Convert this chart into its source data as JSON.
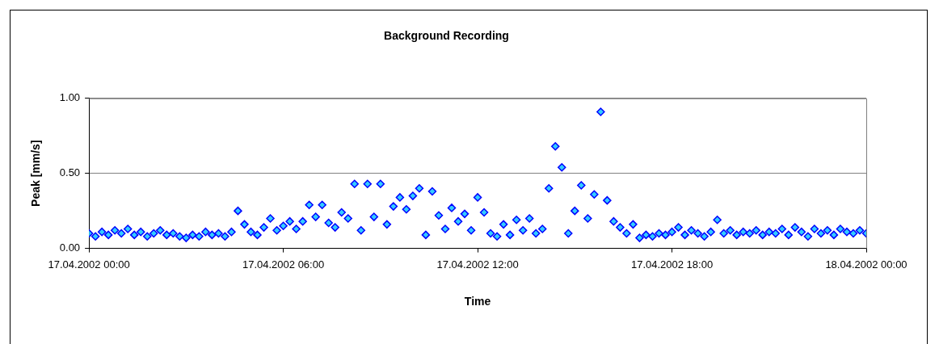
{
  "chart_data": {
    "type": "scatter",
    "title": "Background Recording",
    "xlabel": "Time",
    "ylabel": "Peak [mm/s]",
    "xlim": [
      "2002-04-17T00:00",
      "2002-04-18T00:00"
    ],
    "xticks": [
      {
        "value": "2002-04-17T00:00",
        "label": "17.04.2002 00:00"
      },
      {
        "value": "2002-04-17T06:00",
        "label": "17.04.2002 06:00"
      },
      {
        "value": "2002-04-17T12:00",
        "label": "17.04.2002 12:00"
      },
      {
        "value": "2002-04-17T18:00",
        "label": "17.04.2002 18:00"
      },
      {
        "value": "2002-04-18T00:00",
        "label": "18.04.2002 00:00"
      }
    ],
    "ylim": [
      0,
      1
    ],
    "yticks": [
      {
        "value": 0,
        "label": "0.00"
      },
      {
        "value": 0.5,
        "label": "0.50"
      },
      {
        "value": 1,
        "label": "1.00"
      }
    ],
    "grid": "y",
    "legend": false,
    "marker": "diamond",
    "series": [
      {
        "color": "#33ccff",
        "x": [
          "2002-04-17T00:00",
          "2002-04-17T00:12",
          "2002-04-17T00:24",
          "2002-04-17T00:36",
          "2002-04-17T00:48",
          "2002-04-17T01:00",
          "2002-04-17T01:12",
          "2002-04-17T01:24",
          "2002-04-17T01:36",
          "2002-04-17T01:48",
          "2002-04-17T02:00",
          "2002-04-17T02:12",
          "2002-04-17T02:24",
          "2002-04-17T02:36",
          "2002-04-17T02:48",
          "2002-04-17T03:00",
          "2002-04-17T03:12",
          "2002-04-17T03:24",
          "2002-04-17T03:36",
          "2002-04-17T03:48",
          "2002-04-17T04:00",
          "2002-04-17T04:12",
          "2002-04-17T04:24",
          "2002-04-17T04:36",
          "2002-04-17T04:48",
          "2002-04-17T05:00",
          "2002-04-17T05:12",
          "2002-04-17T05:24",
          "2002-04-17T05:36",
          "2002-04-17T05:48",
          "2002-04-17T06:00",
          "2002-04-17T06:12",
          "2002-04-17T06:24",
          "2002-04-17T06:36",
          "2002-04-17T06:48",
          "2002-04-17T07:00",
          "2002-04-17T07:12",
          "2002-04-17T07:24",
          "2002-04-17T07:36",
          "2002-04-17T07:48",
          "2002-04-17T08:00",
          "2002-04-17T08:12",
          "2002-04-17T08:24",
          "2002-04-17T08:36",
          "2002-04-17T08:48",
          "2002-04-17T09:00",
          "2002-04-17T09:12",
          "2002-04-17T09:24",
          "2002-04-17T09:36",
          "2002-04-17T09:48",
          "2002-04-17T10:00",
          "2002-04-17T10:12",
          "2002-04-17T10:24",
          "2002-04-17T10:36",
          "2002-04-17T10:48",
          "2002-04-17T11:00",
          "2002-04-17T11:12",
          "2002-04-17T11:24",
          "2002-04-17T11:36",
          "2002-04-17T11:48",
          "2002-04-17T12:00",
          "2002-04-17T12:12",
          "2002-04-17T12:24",
          "2002-04-17T12:36",
          "2002-04-17T12:48",
          "2002-04-17T13:00",
          "2002-04-17T13:12",
          "2002-04-17T13:24",
          "2002-04-17T13:36",
          "2002-04-17T13:48",
          "2002-04-17T14:00",
          "2002-04-17T14:12",
          "2002-04-17T14:24",
          "2002-04-17T14:36",
          "2002-04-17T14:48",
          "2002-04-17T15:00",
          "2002-04-17T15:12",
          "2002-04-17T15:24",
          "2002-04-17T15:36",
          "2002-04-17T15:48",
          "2002-04-17T16:00",
          "2002-04-17T16:12",
          "2002-04-17T16:24",
          "2002-04-17T16:36",
          "2002-04-17T16:48",
          "2002-04-17T17:00",
          "2002-04-17T17:12",
          "2002-04-17T17:24",
          "2002-04-17T17:36",
          "2002-04-17T17:48",
          "2002-04-17T18:00",
          "2002-04-17T18:12",
          "2002-04-17T18:24",
          "2002-04-17T18:36",
          "2002-04-17T18:48",
          "2002-04-17T19:00",
          "2002-04-17T19:12",
          "2002-04-17T19:24",
          "2002-04-17T19:36",
          "2002-04-17T19:48",
          "2002-04-17T20:00",
          "2002-04-17T20:12",
          "2002-04-17T20:24",
          "2002-04-17T20:36",
          "2002-04-17T20:48",
          "2002-04-17T21:00",
          "2002-04-17T21:12",
          "2002-04-17T21:24",
          "2002-04-17T21:36",
          "2002-04-17T21:48",
          "2002-04-17T22:00",
          "2002-04-17T22:12",
          "2002-04-17T22:24",
          "2002-04-17T22:36",
          "2002-04-17T22:48",
          "2002-04-17T23:00",
          "2002-04-17T23:12",
          "2002-04-17T23:24",
          "2002-04-17T23:36",
          "2002-04-17T23:48",
          "2002-04-18T00:00"
        ],
        "values": [
          0.1,
          0.08,
          0.11,
          0.09,
          0.12,
          0.1,
          0.13,
          0.09,
          0.11,
          0.08,
          0.1,
          0.12,
          0.09,
          0.1,
          0.08,
          0.07,
          0.09,
          0.08,
          0.11,
          0.09,
          0.1,
          0.08,
          0.11,
          0.25,
          0.16,
          0.11,
          0.09,
          0.14,
          0.2,
          0.12,
          0.15,
          0.18,
          0.13,
          0.18,
          0.29,
          0.21,
          0.29,
          0.17,
          0.14,
          0.24,
          0.2,
          0.43,
          0.12,
          0.43,
          0.21,
          0.43,
          0.16,
          0.28,
          0.34,
          0.26,
          0.35,
          0.4,
          0.09,
          0.38,
          0.22,
          0.13,
          0.27,
          0.18,
          0.23,
          0.12,
          0.34,
          0.24,
          0.1,
          0.08,
          0.16,
          0.09,
          0.19,
          0.12,
          0.2,
          0.1,
          0.13,
          0.4,
          0.68,
          0.54,
          0.1,
          0.25,
          0.42,
          0.2,
          0.36,
          0.91,
          0.32,
          0.18,
          0.14,
          0.1,
          0.16,
          0.07,
          0.09,
          0.08,
          0.1,
          0.09,
          0.11,
          0.14,
          0.09,
          0.12,
          0.1,
          0.08,
          0.11,
          0.19,
          0.1,
          0.12,
          0.09,
          0.11,
          0.1,
          0.12,
          0.09,
          0.11,
          0.1,
          0.13,
          0.09,
          0.14,
          0.11,
          0.08,
          0.13,
          0.1,
          0.12,
          0.09,
          0.13,
          0.11,
          0.1,
          0.12,
          0.1
        ]
      }
    ]
  }
}
